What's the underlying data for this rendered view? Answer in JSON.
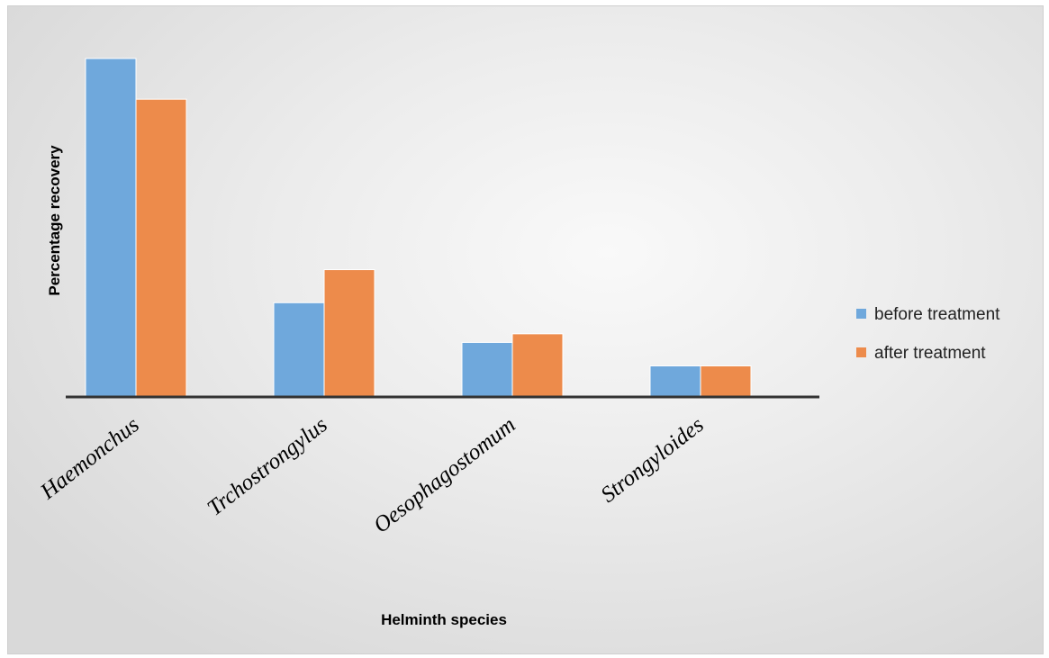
{
  "chart_data": {
    "type": "bar",
    "title": "",
    "xlabel": "Helminth species",
    "ylabel": "Percentage recovery",
    "categories": [
      "Haemonchus",
      "Trchostrongylus",
      "Oesophagostomum",
      "Strongyloides"
    ],
    "series": [
      {
        "name": "before treatment",
        "color": "#6FA8DC",
        "values": [
          70.5,
          19.5,
          11.2,
          6.3
        ]
      },
      {
        "name": "after treatment",
        "color": "#ED8B4B",
        "values": [
          62.0,
          26.4,
          13.0,
          6.3
        ]
      }
    ],
    "ylim": [
      0,
      72
    ],
    "grid": false,
    "y_ticks_shown": false,
    "legend_position": "right",
    "axis_color": "#333333"
  }
}
